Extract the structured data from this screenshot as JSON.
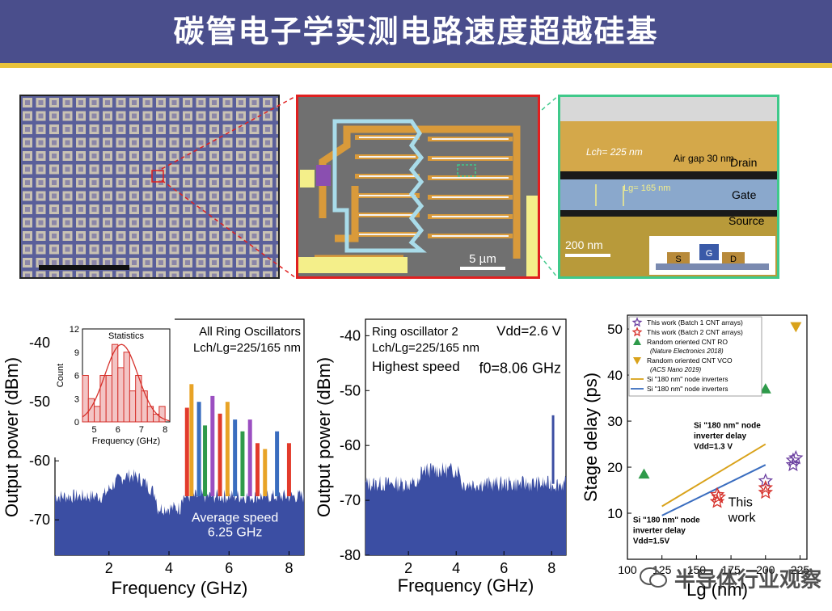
{
  "header": {
    "title": "碳管电子学实测电路速度超越硅基"
  },
  "micrograph_mid": {
    "scale_label": "5 µm"
  },
  "micrograph_right": {
    "scale_label": "200 nm",
    "lch_label": "Lch= 225 nm",
    "lg_label": "Lg= 165 nm",
    "air_gap_label": "Air gap 30 nm",
    "drain_label": "Drain",
    "gate_label": "Gate",
    "source_label": "Source",
    "inset_s": "S",
    "inset_g": "G",
    "inset_d": "D"
  },
  "watermark": {
    "text": "半导体行业观察"
  },
  "chart_data": [
    {
      "type": "line",
      "title": "All Ring Oscillators",
      "subtitle": "Lch/Lg=225/165 nm",
      "xlabel": "Frequency (GHz)",
      "ylabel": "Output power (dBm)",
      "xticks": [
        "2",
        "4",
        "6",
        "8"
      ],
      "yticks": [
        "-40",
        "-50",
        "-60",
        "-70"
      ],
      "xlim": [
        0.2,
        8.5
      ],
      "ylim": [
        -76,
        -36
      ],
      "annotation": "Average speed",
      "annotation2": "6.25 GHz",
      "peaks": [
        {
          "x": 4.6,
          "y": -51,
          "color": "#e23b2b"
        },
        {
          "x": 4.75,
          "y": -47,
          "color": "#e8a326"
        },
        {
          "x": 5.0,
          "y": -50,
          "color": "#3a6dbf"
        },
        {
          "x": 5.2,
          "y": -54,
          "color": "#2f9a4a"
        },
        {
          "x": 5.45,
          "y": -49,
          "color": "#9b4fc1"
        },
        {
          "x": 5.7,
          "y": -52,
          "color": "#e23b2b"
        },
        {
          "x": 5.95,
          "y": -50,
          "color": "#e8a326"
        },
        {
          "x": 6.2,
          "y": -53,
          "color": "#3a6dbf"
        },
        {
          "x": 6.45,
          "y": -55,
          "color": "#2f9a4a"
        },
        {
          "x": 6.7,
          "y": -53,
          "color": "#9b4fc1"
        },
        {
          "x": 6.95,
          "y": -57,
          "color": "#e23b2b"
        },
        {
          "x": 7.2,
          "y": -58,
          "color": "#e8a326"
        },
        {
          "x": 7.6,
          "y": -55,
          "color": "#3a6dbf"
        },
        {
          "x": 8.0,
          "y": -57,
          "color": "#e23b2b"
        }
      ],
      "inset": {
        "type": "bar",
        "title": "Statistics",
        "xlabel": "Frequency (GHz)",
        "ylabel": "Count",
        "xticks": [
          "5",
          "6",
          "7",
          "8"
        ],
        "yticks": [
          "0",
          "3",
          "6",
          "9",
          "12"
        ],
        "bins_x": [
          4.5,
          4.75,
          5.0,
          5.25,
          5.5,
          5.75,
          6.0,
          6.25,
          6.5,
          6.75,
          7.0,
          7.25,
          7.5,
          7.75
        ],
        "counts": [
          6,
          3,
          2,
          6,
          6,
          10,
          7,
          9,
          4,
          6,
          4,
          2,
          1,
          2
        ],
        "xlim": [
          4.5,
          8.2
        ],
        "ylim": [
          0,
          12
        ]
      }
    },
    {
      "type": "line",
      "title": "Ring oscillator 2",
      "subtitle": "Lch/Lg=225/165 nm",
      "subtitle2": "Highest speed",
      "vdd_label": "Vdd=2.6 V",
      "annotation": "f0=8.06 GHz",
      "xlabel": "Frequency (GHz)",
      "ylabel": "Output power (dBm)",
      "xticks": [
        "2",
        "4",
        "6",
        "8"
      ],
      "yticks": [
        "-40",
        "-50",
        "-60",
        "-70",
        "-80"
      ],
      "xlim": [
        0.2,
        8.6
      ],
      "ylim": [
        -80,
        -37
      ],
      "peak": {
        "x": 8.06,
        "y": -54.5
      }
    },
    {
      "type": "scatter",
      "xlabel": "Lg (nm)",
      "ylabel": "Stage delay (ps)",
      "xticks": [
        "100",
        "125",
        "150",
        "175",
        "200",
        "225"
      ],
      "yticks": [
        "10",
        "20",
        "30",
        "40",
        "50"
      ],
      "xlim": [
        100,
        230
      ],
      "ylim": [
        0,
        53
      ],
      "legend": [
        {
          "label": "This work (Batch 1 CNT arrays)",
          "marker": "star",
          "color": "#6b3fa0"
        },
        {
          "label": "This work (Batch 2 CNT arrays)",
          "marker": "star",
          "color": "#d6312b"
        },
        {
          "label": "Random oriented CNT RO",
          "label2": "(Nature Electronics 2018)",
          "marker": "tri-up",
          "color": "#2e9a4a"
        },
        {
          "label": "Random oriented CNT VCO",
          "label2": "(ACS Nano 2019)",
          "marker": "tri-down",
          "color": "#d9a21a"
        },
        {
          "label": "Si \"180 nm\" node inverters",
          "marker": "line",
          "color": "#d9a21a"
        },
        {
          "label": "Si \"180 nm\" node inverters",
          "marker": "line",
          "color": "#3a6dbf"
        }
      ],
      "batch1": [
        [
          200,
          17
        ],
        [
          220,
          21.5
        ],
        [
          220,
          20.5
        ],
        [
          222,
          22
        ]
      ],
      "batch2": [
        [
          165,
          14
        ],
        [
          165,
          12.5
        ],
        [
          166,
          13.5
        ],
        [
          200,
          15.5
        ],
        [
          200,
          14.5
        ]
      ],
      "cnt_ro": [
        [
          112,
          18.5
        ],
        [
          200,
          37
        ]
      ],
      "cnt_vco": [
        [
          222,
          50.5
        ]
      ],
      "si_line_1": [
        [
          125,
          11.5
        ],
        [
          200,
          25
        ]
      ],
      "si_line_2": [
        [
          125,
          9.5
        ],
        [
          200,
          20.5
        ]
      ],
      "annotation_upper": [
        "Si \"180 nm\" node",
        "inverter delay",
        "Vdd=1.3 V"
      ],
      "annotation_lower": [
        "Si \"180 nm\" node",
        "inverter delay",
        "Vdd=1.5V"
      ],
      "annotation_this": [
        "This",
        "work"
      ]
    }
  ]
}
